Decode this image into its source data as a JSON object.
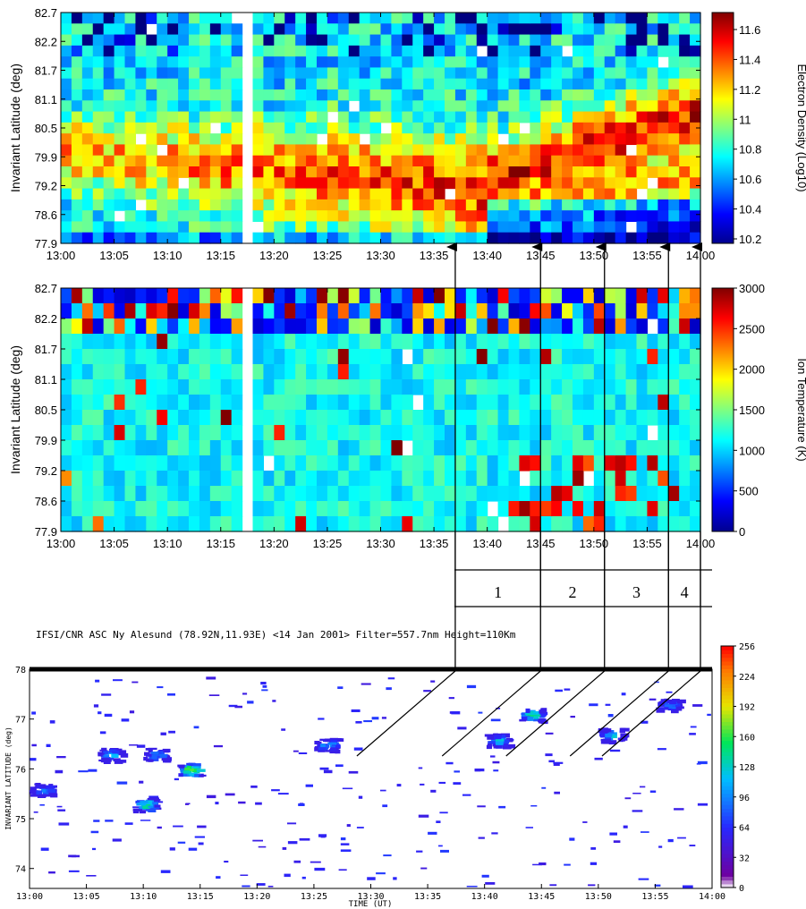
{
  "chart_data": [
    {
      "type": "heatmap",
      "title": "",
      "xlabel": "",
      "ylabel": "Invariant Latitude (deg)",
      "x_tick_labels": [
        "13:00",
        "13:05",
        "13:10",
        "13:15",
        "13:20",
        "13:25",
        "13:30",
        "13:35",
        "13:40",
        "13:45",
        "13:50",
        "13:55",
        "14:00"
      ],
      "y_tick_labels": [
        "82.7",
        "82.2",
        "81.7",
        "81.1",
        "80.5",
        "79.9",
        "79.2",
        "78.6",
        "77.9"
      ],
      "x_range_minutes_after_1300": [
        0,
        60
      ],
      "ylim": [
        77.9,
        82.7
      ],
      "data_gap_minutes_after_1300": [
        16.5,
        18.5
      ],
      "colorbar": {
        "label": "Electron Density (Log10)",
        "tick_labels": [
          "11.6",
          "11.4",
          "11.2",
          "11",
          "10.8",
          "10.6",
          "10.4",
          "10.2"
        ],
        "range": [
          10.2,
          11.75
        ],
        "colormap": "jet"
      },
      "features": [
        {
          "description_of_region": "high density band",
          "lat_center_start": 79.8,
          "lat_center_end": 79.0,
          "time_start": "13:00",
          "time_end": "13:40",
          "value": 11.5
        },
        {
          "description_of_region": "high density band",
          "lat_center_start": 79.2,
          "lat_center_end": 80.6,
          "time_start": "13:40",
          "time_end": "14:00",
          "value": 11.55
        }
      ],
      "grid": false
    },
    {
      "type": "heatmap",
      "title": "",
      "xlabel": "",
      "ylabel": "Invariant Latitude (deg)",
      "x_tick_labels": [
        "13:00",
        "13:05",
        "13:10",
        "13:15",
        "13:20",
        "13:25",
        "13:30",
        "13:35",
        "13:40",
        "13:45",
        "13:50",
        "13:55",
        "14:00"
      ],
      "y_tick_labels": [
        "82.7",
        "82.2",
        "81.7",
        "81.1",
        "80.5",
        "79.9",
        "79.2",
        "78.6",
        "77.9"
      ],
      "x_range_minutes_after_1300": [
        0,
        60
      ],
      "ylim": [
        77.9,
        82.7
      ],
      "data_gap_minutes_after_1300": [
        16.5,
        18.5
      ],
      "colorbar": {
        "label": "Ion Temperature (K)",
        "tick_labels": [
          "3000",
          "2500",
          "2000",
          "1500",
          "1000",
          "500",
          "0"
        ],
        "range": [
          0,
          3000
        ],
        "colormap": "jet"
      },
      "grid": false
    },
    {
      "type": "heatmap",
      "title": "IFSI/CNR  ASC  Ny Alesund (78.92N,11.93E)  <14 Jan 2001>  Filter=557.7nm  Height=110Km",
      "xlabel": "TIME (UT)",
      "ylabel": "INVARIANT LATITUDE (deg)",
      "x_tick_labels": [
        "13:00",
        "13:05",
        "13:10",
        "13:15",
        "13:20",
        "13:25",
        "13:30",
        "13:35",
        "13:40",
        "13:45",
        "13:50",
        "13:55",
        "14:00"
      ],
      "y_tick_labels": [
        "78",
        "77",
        "76",
        "75",
        "74"
      ],
      "ylim": [
        73.6,
        78
      ],
      "colorbar": {
        "tick_labels": [
          "256",
          "224",
          "192",
          "160",
          "128",
          "96",
          "64",
          "32",
          "0"
        ],
        "range": [
          0,
          256
        ],
        "colormap": "rainbow"
      },
      "emission_patches": [
        {
          "time": "13:01",
          "lat": 75.6,
          "intensity": 100
        },
        {
          "time": "13:07",
          "lat": 76.3,
          "intensity": 110
        },
        {
          "time": "13:10",
          "lat": 75.3,
          "intensity": 150
        },
        {
          "time": "13:11",
          "lat": 76.3,
          "intensity": 100
        },
        {
          "time": "13:14",
          "lat": 76.0,
          "intensity": 190
        },
        {
          "time": "13:26",
          "lat": 76.5,
          "intensity": 110
        },
        {
          "time": "13:41",
          "lat": 76.6,
          "intensity": 120
        },
        {
          "time": "13:44",
          "lat": 77.1,
          "intensity": 150
        },
        {
          "time": "13:51",
          "lat": 76.7,
          "intensity": 120
        },
        {
          "time": "13:56",
          "lat": 77.3,
          "intensity": 100
        }
      ]
    }
  ],
  "intervals": {
    "labels": [
      "1",
      "2",
      "3",
      "4"
    ],
    "boundary_times": [
      "13:37",
      "13:45",
      "13:51",
      "13:57",
      "14:00"
    ]
  }
}
